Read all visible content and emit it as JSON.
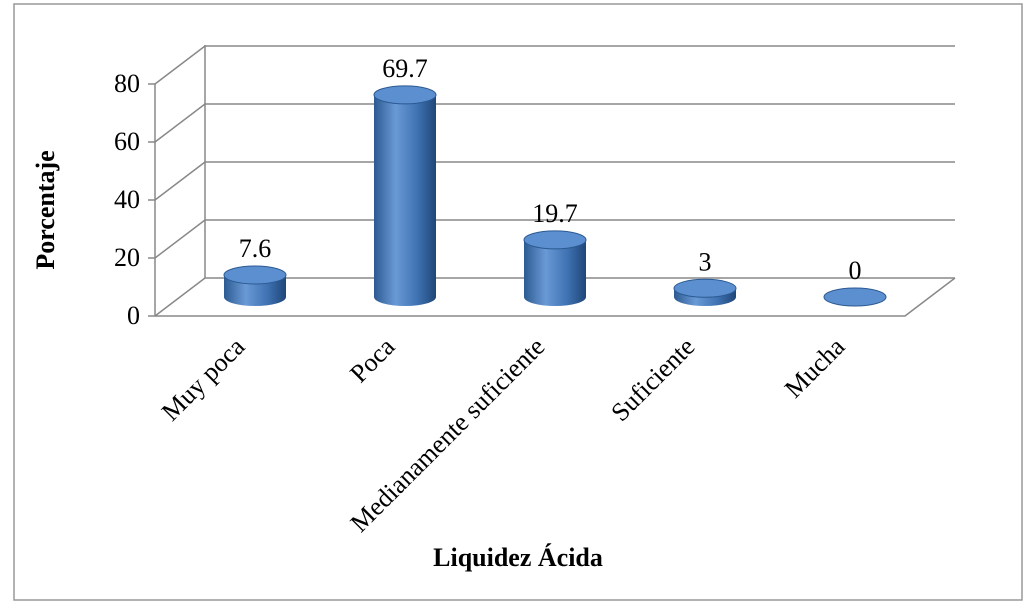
{
  "chart_data": {
    "type": "bar",
    "x_label": "Liquidez Ácida",
    "y_label": "Porcentaje",
    "categories": [
      "Muy poca",
      "Poca",
      "Medianamente suficiente",
      "Suficiente",
      "Mucha"
    ],
    "values": [
      7.6,
      69.7,
      19.7,
      3,
      0
    ],
    "color": "#4f81bd",
    "ylim": [
      0,
      80
    ],
    "yticks": [
      0,
      20,
      40,
      60,
      80
    ],
    "grid": true
  }
}
